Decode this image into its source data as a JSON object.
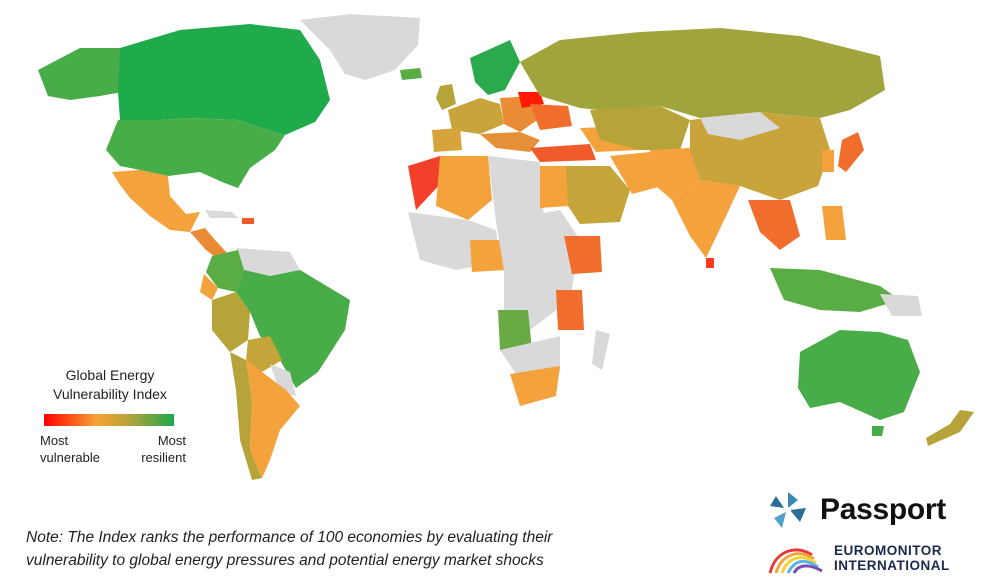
{
  "legend": {
    "title_line1": "Global Energy",
    "title_line2": "Vulnerability Index",
    "low_line1": "Most",
    "low_line2": "vulnerable",
    "high_line1": "Most",
    "high_line2": "resilient"
  },
  "note": {
    "line1": "Note: The Index ranks the performance of 100 economies by evaluating their",
    "line2": "vulnerability to global energy pressures and potential energy market shocks"
  },
  "brand": {
    "passport": "Passport",
    "euromonitor_line1": "EUROMONITOR",
    "euromonitor_line2": "INTERNATIONAL",
    "passport_icon": "passport-globe-logo",
    "euromonitor_icon": "euromonitor-rainbow-logo"
  },
  "colors": {
    "no_data": "#d9d9d9",
    "most_vulnerable": "#ff0000",
    "vulnerable": "#f7a233",
    "mid": "#b6a33a",
    "most_resilient": "#1ca84a"
  }
}
